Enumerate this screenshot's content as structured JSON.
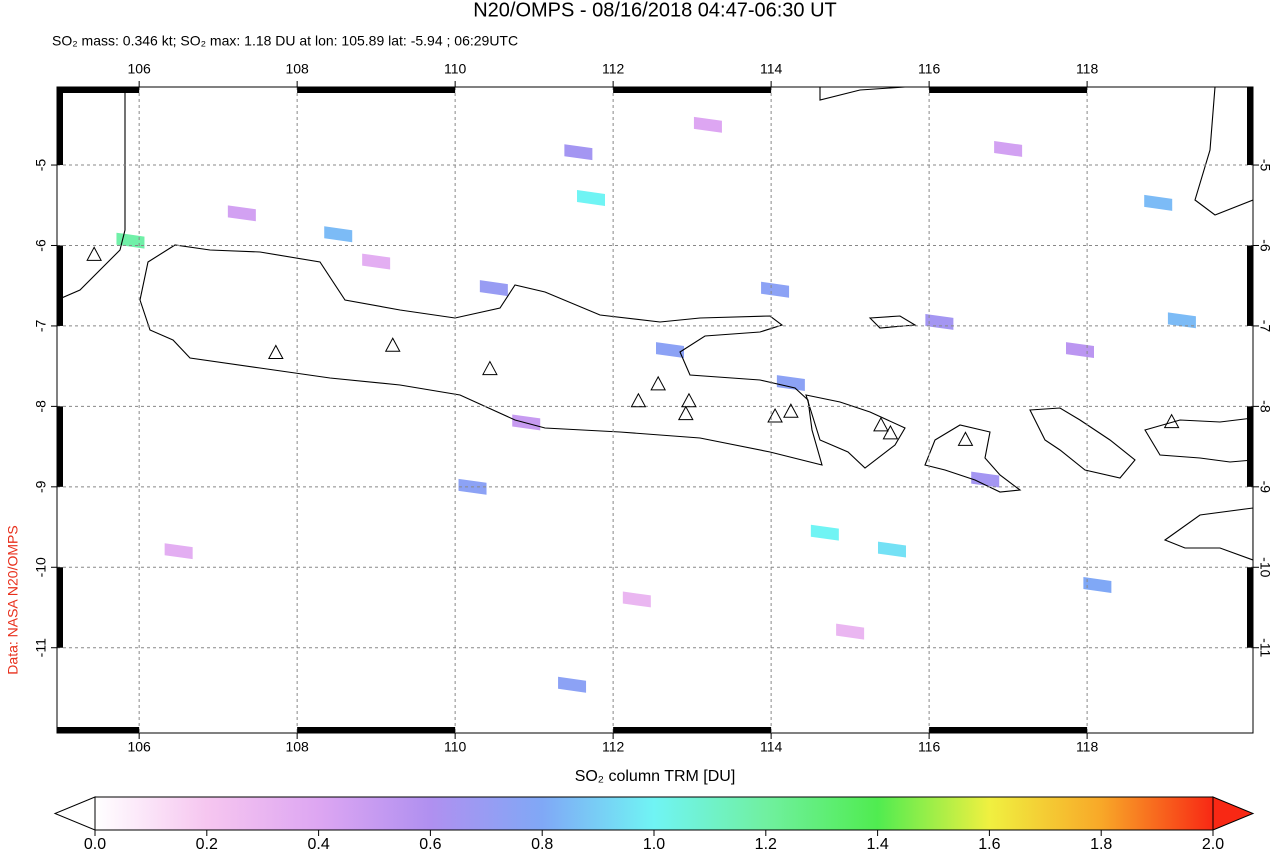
{
  "chart_data": {
    "type": "map",
    "title": "N20/OMPS - 08/16/2018 04:47-06:30 UT",
    "subtitle": "SO₂ mass: 0.346 kt; SO₂ max: 1.18 DU at lon: 105.89 lat: -5.94 ; 06:29UTC",
    "credit": "Data: NASA N20/OMPS",
    "colorbar_label": "SO₂ column TRM [DU]",
    "xlim": [
      104.96,
      120.1
    ],
    "ylim": [
      -12.06,
      -4.03
    ],
    "xticks": [
      106,
      108,
      110,
      112,
      114,
      116,
      118
    ],
    "yticks": [
      -5,
      -6,
      -7,
      -8,
      -9,
      -10,
      -11
    ],
    "grid": true,
    "colorbar_lim": [
      0,
      2
    ],
    "colorbar_ticks": [
      {
        "value": 0,
        "label": "0.0"
      },
      {
        "value": 0.2,
        "label": "0.2"
      },
      {
        "value": 0.4,
        "label": "0.4"
      },
      {
        "value": 0.6,
        "label": "0.6"
      },
      {
        "value": 0.8,
        "label": "0.8"
      },
      {
        "value": 1,
        "label": "1.0"
      },
      {
        "value": 1.2,
        "label": "1.2"
      },
      {
        "value": 1.4,
        "label": "1.4"
      },
      {
        "value": 1.6,
        "label": "1.6"
      },
      {
        "value": 1.8,
        "label": "1.8"
      },
      {
        "value": 2,
        "label": "2.0"
      }
    ],
    "colorscale": [
      "#ffffff",
      "#f6c6f0",
      "#dda6f2",
      "#b090f0",
      "#80a8f6",
      "#70f4f4",
      "#70f0a0",
      "#50ec50",
      "#f0f040",
      "#f8a828",
      "#f82814"
    ],
    "cells": {
      "lon": [
        105.89,
        111.72,
        118.9,
        119.2,
        114.68,
        115.53,
        118.13,
        114.05,
        112.72,
        114.25,
        108.52,
        111.48,
        110.22,
        110.49,
        111.56,
        116.71,
        116.13,
        117.91,
        107.3,
        109.0,
        113.2,
        115.0,
        106.5,
        110.9,
        117.0,
        112.3
      ],
      "lat": [
        -5.94,
        -5.41,
        -5.47,
        -6.93,
        -9.57,
        -9.78,
        -10.22,
        -6.55,
        -7.3,
        -7.71,
        -5.86,
        -11.46,
        -9.0,
        -6.53,
        -4.84,
        -8.91,
        -6.95,
        -7.3,
        -5.6,
        -6.2,
        -4.5,
        -10.8,
        -9.8,
        -8.2,
        -4.8,
        -10.4
      ],
      "values": [
        1.18,
        1.0,
        0.85,
        0.85,
        1.0,
        0.95,
        0.8,
        0.75,
        0.75,
        0.75,
        0.85,
        0.75,
        0.75,
        0.7,
        0.65,
        0.65,
        0.65,
        0.55,
        0.45,
        0.35,
        0.4,
        0.3,
        0.35,
        0.5,
        0.45,
        0.3
      ]
    },
    "volcanoes": {
      "lon": [
        105.43,
        107.73,
        109.21,
        110.44,
        112.32,
        112.57,
        112.96,
        112.92,
        114.05,
        114.25,
        115.39,
        115.51,
        116.46,
        119.07
      ],
      "lat": [
        -6.11,
        -7.33,
        -7.24,
        -7.53,
        -7.93,
        -7.72,
        -7.93,
        -8.09,
        -8.12,
        -8.06,
        -8.23,
        -8.33,
        -8.41,
        -8.19
      ]
    }
  }
}
